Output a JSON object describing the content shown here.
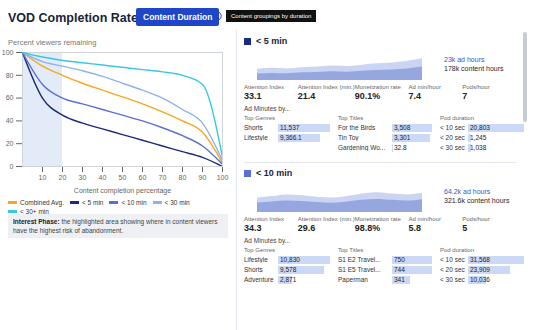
{
  "header": {
    "title": "VOD Completion Rates by",
    "button": "Content Duration",
    "tooltip": "Content groupings by duration"
  },
  "chart_data": {
    "type": "line",
    "y_label": "Percent viewers remaining",
    "x_label": "Content completion percentage",
    "x": [
      0,
      10,
      20,
      30,
      40,
      50,
      60,
      70,
      80,
      90,
      100
    ],
    "xlim": [
      0,
      100
    ],
    "xticks": [
      10,
      20,
      30,
      40,
      50,
      60,
      70,
      80,
      90,
      100
    ],
    "ylim": [
      0,
      100
    ],
    "yticks": [
      0,
      20,
      40,
      60,
      80,
      100
    ],
    "grid": false,
    "legend": "bottom",
    "series": [
      {
        "name": "Combined Avg.",
        "color": "#f5a623",
        "values": [
          100,
          88,
          80,
          73,
          67,
          61,
          55,
          48,
          40,
          30,
          3
        ]
      },
      {
        "name": "< 5 min",
        "color": "#1b2a7a",
        "values": [
          100,
          60,
          45,
          38,
          33,
          28,
          23,
          18,
          13,
          8,
          0
        ]
      },
      {
        "name": "< 10 min",
        "color": "#5a6fd6",
        "values": [
          100,
          72,
          60,
          55,
          50,
          45,
          40,
          34,
          27,
          18,
          2
        ]
      },
      {
        "name": "< 30 min",
        "color": "#8fb1ee",
        "values": [
          100,
          92,
          88,
          84,
          79,
          73,
          67,
          60,
          50,
          38,
          5
        ]
      },
      {
        "name": "< 30+ min",
        "color": "#37c8e0",
        "values": [
          100,
          96,
          93,
          91,
          89,
          87,
          85,
          83,
          80,
          72,
          8
        ]
      }
    ],
    "annotation": {
      "title": "Interest Phase:",
      "text": "the highlighted area showing where in content viewers have the highest risk of abandonment.",
      "x_range": [
        0,
        20
      ]
    }
  },
  "panels": [
    {
      "name": "< 5 min",
      "color": "#1b2a7a",
      "ad_hours": "23k ad hours",
      "content_hours": "178k content hours",
      "trend": {
        "ylim": [
          0,
          100
        ],
        "tick_labels": false,
        "content_hours": [
          35,
          38,
          36,
          40,
          42,
          45,
          44,
          48,
          52,
          55,
          60,
          68
        ],
        "ad_hours": [
          20,
          22,
          21,
          24,
          25,
          27,
          26,
          29,
          31,
          33,
          36,
          42
        ]
      },
      "metrics": [
        {
          "label": "Attention Index",
          "value": "33.1"
        },
        {
          "label": "Attention Index (min.)",
          "value": "21.4"
        },
        {
          "label": "Monetization rate",
          "value": "90.1%"
        },
        {
          "label": "Ad min/hour",
          "value": "7.4"
        },
        {
          "label": "Pods/hour",
          "value": "7"
        }
      ],
      "section": "Ad Minutes by...",
      "tables": [
        {
          "title": "Top Genres",
          "rows": [
            {
              "label": "Shorts",
              "value": 11537,
              "value_label": "11,537"
            },
            {
              "label": "Lifestyle",
              "value": 9366.1,
              "value_label": "9,366.1"
            }
          ]
        },
        {
          "title": "Top Titles",
          "rows": [
            {
              "label": "For the Birds",
              "value": 3508,
              "value_label": "3,508"
            },
            {
              "label": "Tin Toy",
              "value": 3301,
              "value_label": "3,301"
            },
            {
              "label": "Gardening Wo...",
              "value": 32.8,
              "value_label": "32.8"
            }
          ]
        },
        {
          "title": "Pod duration",
          "rows": [
            {
              "label": "< 10 sec",
              "value": 20803,
              "value_label": "20,803"
            },
            {
              "label": "< 20 sec",
              "value": 1245,
              "value_label": "1,245"
            },
            {
              "label": "< 30 sec",
              "value": 1038,
              "value_label": "1,038"
            }
          ]
        }
      ]
    },
    {
      "name": "< 10 min",
      "color": "#5a6fd6",
      "ad_hours": "64.2k ad hours",
      "content_hours": "321.6k content hours",
      "trend": {
        "ylim": [
          0,
          100
        ],
        "tick_labels": false,
        "content_hours": [
          45,
          50,
          55,
          52,
          48,
          45,
          50,
          58,
          62,
          58,
          55,
          60
        ],
        "ad_hours": [
          30,
          33,
          36,
          34,
          31,
          29,
          33,
          38,
          41,
          38,
          36,
          40
        ]
      },
      "metrics": [
        {
          "label": "Attention Index",
          "value": "34.3"
        },
        {
          "label": "Attention Index (min.)",
          "value": "29.6"
        },
        {
          "label": "Monetization rate",
          "value": "98.8%"
        },
        {
          "label": "Ad min/hour",
          "value": "5.8"
        },
        {
          "label": "Pods/hour",
          "value": "5"
        }
      ],
      "section": "Ad Minutes by...",
      "tables": [
        {
          "title": "Top Genres",
          "rows": [
            {
              "label": "Lifestyle",
              "value": 10830,
              "value_label": "10,830"
            },
            {
              "label": "Shorts",
              "value": 9578,
              "value_label": "9,578"
            },
            {
              "label": "Adventure",
              "value": 2871,
              "value_label": "2,871"
            }
          ]
        },
        {
          "title": "Top Titles",
          "rows": [
            {
              "label": "S1 E2 Travel...",
              "value": 750,
              "value_label": "750"
            },
            {
              "label": "S1 E5 Travel...",
              "value": 744,
              "value_label": "744"
            },
            {
              "label": "Paperman",
              "value": 341,
              "value_label": "341"
            }
          ]
        },
        {
          "title": "Pod duration",
          "rows": [
            {
              "label": "< 10 sec",
              "value": 31568,
              "value_label": "31,568"
            },
            {
              "label": "< 20 sec",
              "value": 23909,
              "value_label": "23,909"
            },
            {
              "label": "< 30 sec",
              "value": 10036,
              "value_label": "10,036"
            }
          ]
        }
      ]
    }
  ]
}
